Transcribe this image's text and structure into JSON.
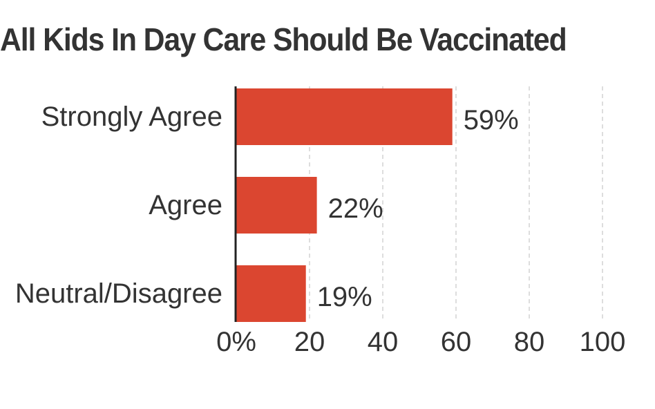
{
  "chart_data": {
    "type": "bar",
    "orientation": "horizontal",
    "title": "All Kids In Day Care Should Be Vaccinated",
    "categories": [
      "Strongly Agree",
      "Agree",
      "Neutral/Disagree"
    ],
    "values": [
      59,
      22,
      19
    ],
    "value_labels": [
      "59%",
      "22%",
      "19%"
    ],
    "x_ticks": [
      0,
      20,
      40,
      60,
      80,
      100
    ],
    "x_tick_labels": [
      "0%",
      "20",
      "40",
      "60",
      "80",
      "100"
    ],
    "xlim": [
      0,
      100
    ],
    "grid": true,
    "legend": "none",
    "bar_color": "#db4630",
    "text_color": "#333333",
    "grid_color": "#dddddd",
    "axis_color": "#222222"
  }
}
